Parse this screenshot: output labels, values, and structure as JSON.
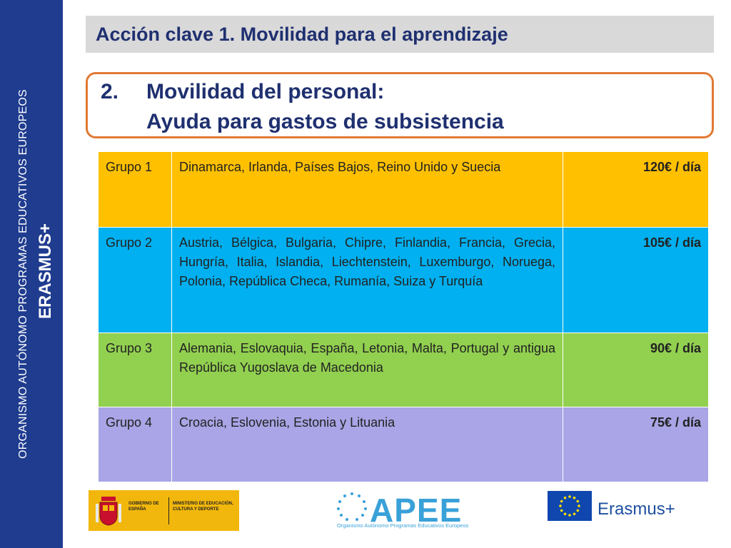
{
  "sidebar": {
    "org_text": "ORGANISMO AUTÓNOMO PROGRAMAS EDUCATIVOS EUROPEOS",
    "brand_text": "ERASMUS+"
  },
  "header": {
    "title": "Acción clave 1. Movilidad para el aprendizaje"
  },
  "subtitle": {
    "number": "2.",
    "line1": "Movilidad del personal:",
    "line2": "Ayuda para gastos de subsistencia"
  },
  "table": {
    "rows": [
      {
        "group": "Grupo 1",
        "countries": "Dinamarca, Irlanda, Países Bajos, Reino Unido y Suecia",
        "rate": "120€ / día",
        "color": "#ffc000"
      },
      {
        "group": "Grupo 2",
        "countries": "Austria, Bélgica, Bulgaria, Chipre, Finlandia, Francia, Grecia, Hungría, Italia, Islandia, Liechtenstein, Luxemburgo, Noruega, Polonia, República Checa, Rumanía, Suiza y Turquía",
        "rate": "105€ / día",
        "color": "#00b0f0"
      },
      {
        "group": "Grupo 3",
        "countries": "Alemania, Eslovaquia, España, Letonia, Malta, Portugal y antigua República Yugoslava de Macedonia",
        "rate": "90€ / día",
        "color": "#92d050"
      },
      {
        "group": "Grupo 4",
        "countries": "Croacia, Eslovenia, Estonia y Lituania",
        "rate": "75€ / día",
        "color": "#a9a5e6"
      }
    ]
  },
  "logos": {
    "gobierno_line": "GOBIERNO DE ESPAÑA",
    "ministerio_line": "MINISTERIO DE EDUCACIÓN, CULTURA Y DEPORTE",
    "apee_word": "APEE",
    "apee_sub": "Organismo Autónomo Programas Educativos Europeos",
    "erasmus_word": "Erasmus+"
  }
}
